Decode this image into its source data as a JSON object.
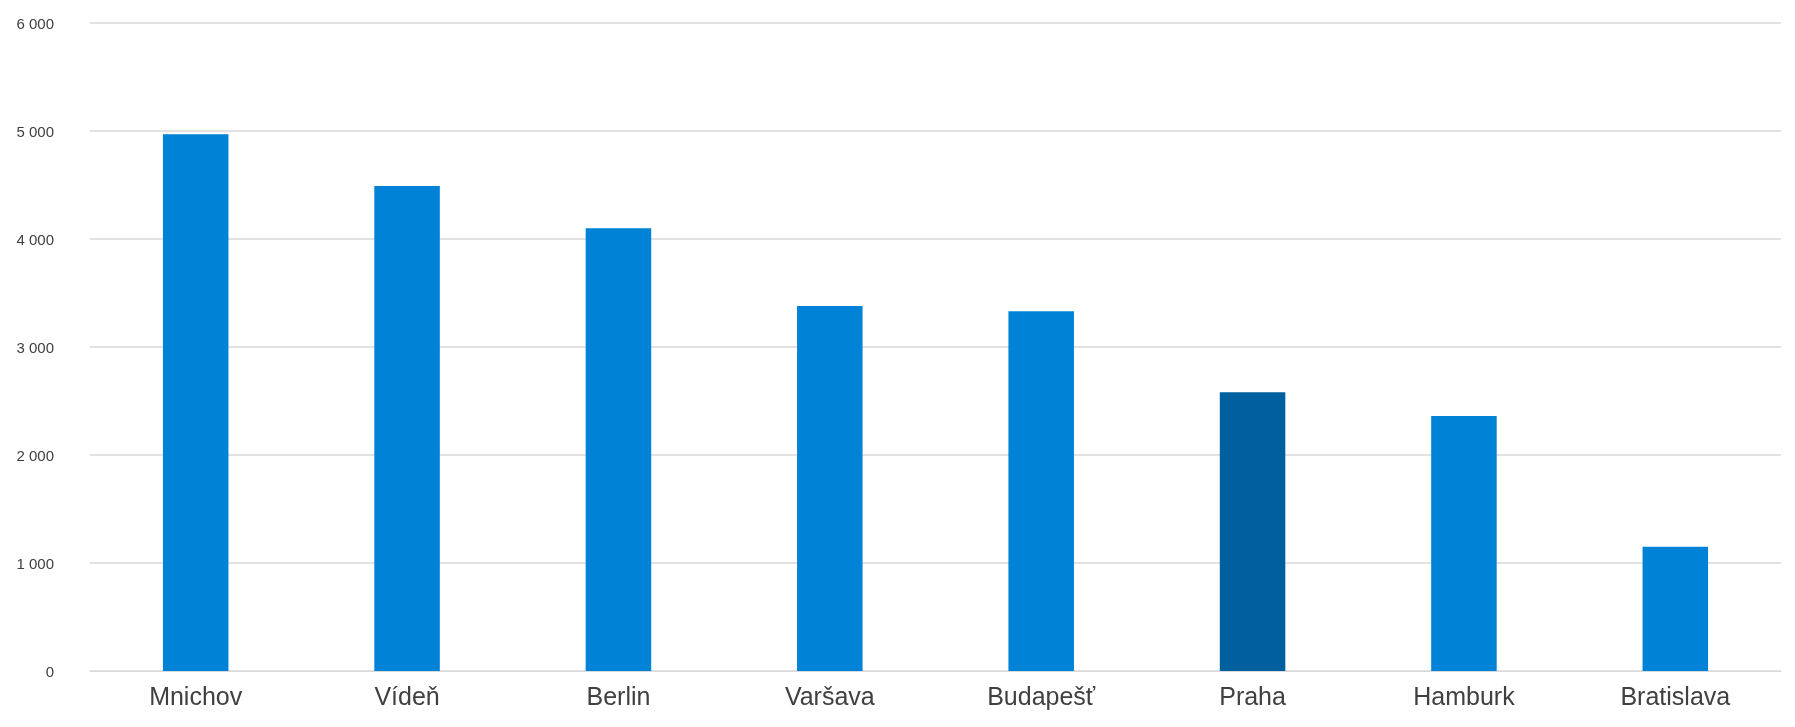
{
  "chart_data": {
    "type": "bar",
    "categories": [
      "Mnichov",
      "Vídeň",
      "Berlin",
      "Varšava",
      "Budapešť",
      "Praha",
      "Hamburk",
      "Bratislava"
    ],
    "values": [
      4970,
      4490,
      4100,
      3380,
      3330,
      2580,
      2360,
      1150
    ],
    "colors": [
      "#0083d7",
      "#0083d7",
      "#0083d7",
      "#0083d7",
      "#0083d7",
      "#005f9e",
      "#0083d7",
      "#0083d7"
    ],
    "ylim": [
      0,
      6000
    ],
    "yticks": [
      {
        "value": 0,
        "label": "0"
      },
      {
        "value": 1000,
        "label": "1 000"
      },
      {
        "value": 2000,
        "label": "2 000"
      },
      {
        "value": 3000,
        "label": "3 000"
      },
      {
        "value": 4000,
        "label": "4 000"
      },
      {
        "value": 5000,
        "label": "5 000"
      },
      {
        "value": 6000,
        "label": "6 000"
      }
    ],
    "grid": "y"
  }
}
